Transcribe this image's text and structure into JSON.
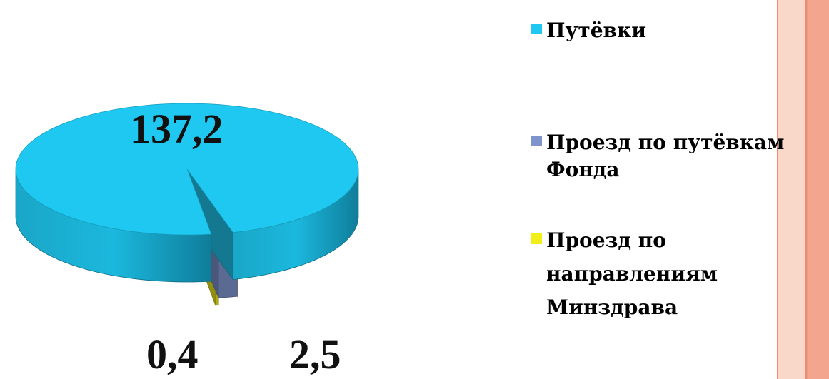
{
  "chart_data": {
    "type": "pie",
    "style": "3d-exploded",
    "slices": [
      {
        "label": "Путёвки",
        "value": 137.2,
        "value_label": "137,2",
        "color": "#1FC8F0"
      },
      {
        "label": "Проезд по путёвкам Фонда",
        "value": 2.5,
        "value_label": "2,5",
        "color": "#7F93CC"
      },
      {
        "label": "Проезд по направлениям Минздрава",
        "value": 0.4,
        "value_label": "0,4",
        "color": "#F2EE1A"
      }
    ],
    "legend": {
      "placement": "right",
      "items": [
        {
          "lines": [
            "Путёвки"
          ],
          "color": "#1FC8F0"
        },
        {
          "lines": [
            "Проезд по путёвкам",
            "Фонда"
          ],
          "color": "#7F93CC"
        },
        {
          "lines": [
            "Проезд по",
            "направлениям",
            "Минздрава"
          ],
          "color": "#F2EE1A"
        }
      ]
    }
  },
  "decor": {
    "stripe_colors": [
      "#F9D7C9",
      "#F3A58D"
    ]
  }
}
